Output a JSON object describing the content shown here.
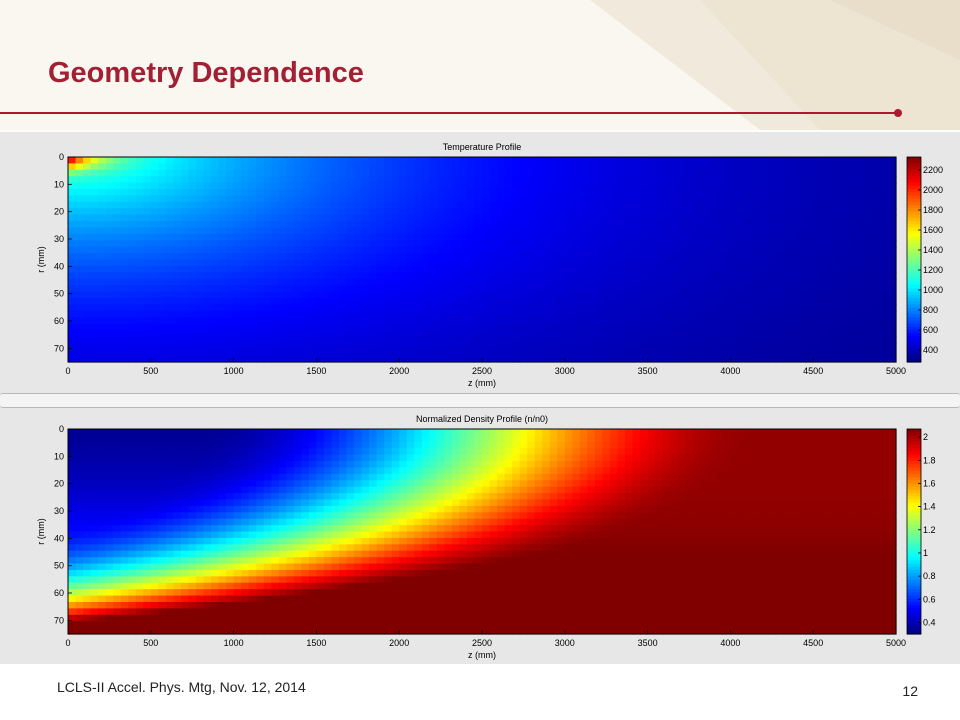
{
  "slide": {
    "title": "Geometry Dependence",
    "footer": "LCLS-II Accel. Phys. Mtg, Nov. 12, 2014",
    "page_number": "12",
    "accent_color": "#b0182e",
    "title_color": "#a31f34"
  },
  "chart_data": [
    {
      "type": "heatmap",
      "title": "Temperature Profile",
      "xlabel": "z (mm)",
      "ylabel": "r (mm)",
      "xlim": [
        0,
        5000
      ],
      "ylim": [
        0,
        75
      ],
      "y_reversed": true,
      "x_ticks": [
        0,
        500,
        1000,
        1500,
        2000,
        2500,
        3000,
        3500,
        4000,
        4500,
        5000
      ],
      "y_ticks": [
        0,
        10,
        20,
        30,
        40,
        50,
        60,
        70
      ],
      "colormap": "jet",
      "colorbar": {
        "range": [
          280,
          2330
        ],
        "ticks": [
          400,
          600,
          800,
          1000,
          1200,
          1400,
          1600,
          1800,
          2000,
          2200
        ]
      },
      "field": {
        "description_values": [
          {
            "z": 0,
            "r": 0,
            "value": 2300
          },
          {
            "z": 0,
            "r": 10,
            "value": 1450
          },
          {
            "z": 0,
            "r": 30,
            "value": 1000
          },
          {
            "z": 0,
            "r": 75,
            "value": 400
          },
          {
            "z": 2000,
            "r": 0,
            "value": 1000
          },
          {
            "z": 3000,
            "r": 0,
            "value": 500
          },
          {
            "z": 4000,
            "r": 0,
            "value": 300
          },
          {
            "z": 5000,
            "r": 75,
            "value": 290
          }
        ]
      }
    },
    {
      "type": "heatmap",
      "title": "Normalized Density Profile (n/n0)",
      "xlabel": "z (mm)",
      "ylabel": "r (mm)",
      "xlim": [
        0,
        5000
      ],
      "ylim": [
        0,
        75
      ],
      "y_reversed": true,
      "x_ticks": [
        0,
        500,
        1000,
        1500,
        2000,
        2500,
        3000,
        3500,
        4000,
        4500,
        5000
      ],
      "y_ticks": [
        0,
        10,
        20,
        30,
        40,
        50,
        60,
        70
      ],
      "colormap": "jet",
      "colorbar": {
        "range": [
          0.3,
          2.07
        ],
        "ticks": [
          0.4,
          0.6,
          0.8,
          1,
          1.2,
          1.4,
          1.6,
          1.8,
          2
        ],
        "tick_labels": [
          "0.4",
          "0.6",
          "0.8",
          "1",
          "1.2",
          "1.4",
          "1.6",
          "1.8",
          "2"
        ]
      },
      "field": {
        "description_values": [
          {
            "z": 0,
            "r": 0,
            "value": 0.35
          },
          {
            "z": 0,
            "r": 40,
            "value": 0.85
          },
          {
            "z": 0,
            "r": 75,
            "value": 1.85
          },
          {
            "z": 2500,
            "r": 0,
            "value": 1.0
          },
          {
            "z": 3500,
            "r": 0,
            "value": 1.9
          },
          {
            "z": 4500,
            "r": 0,
            "value": 2.07
          },
          {
            "z": 5000,
            "r": 75,
            "value": 2.07
          }
        ]
      }
    }
  ]
}
